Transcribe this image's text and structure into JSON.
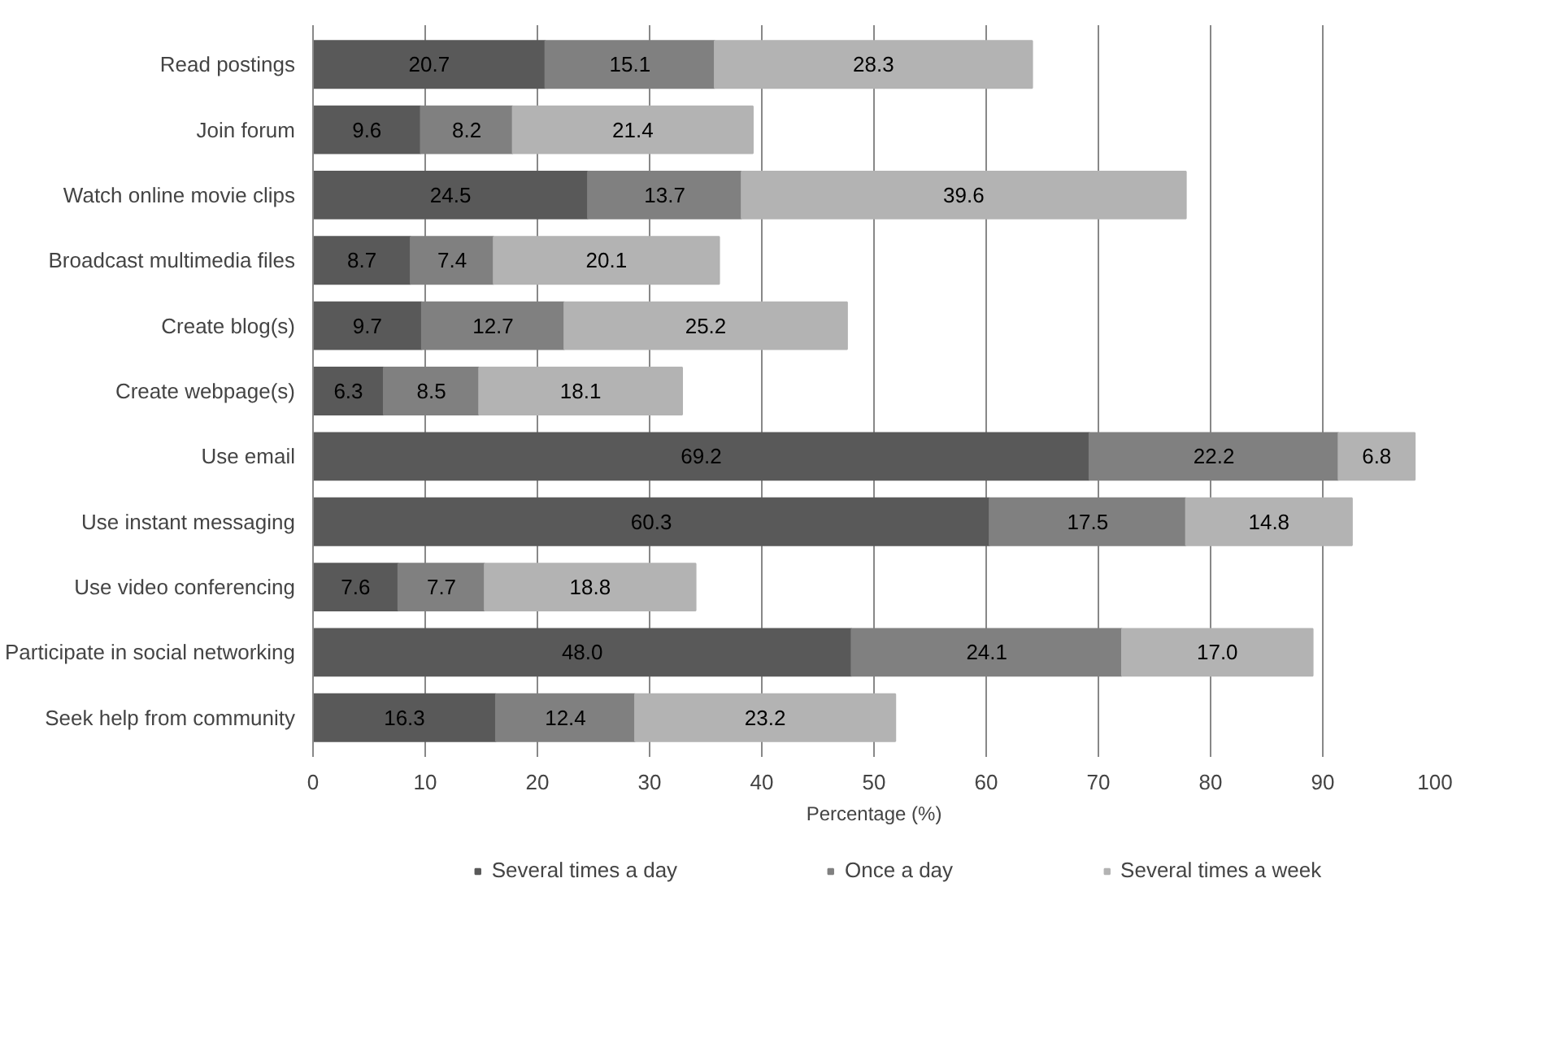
{
  "chart_data": {
    "type": "bar",
    "orientation": "horizontal",
    "stacked": true,
    "xlabel": "Percentage (%)",
    "categories": [
      "Read postings",
      "Join forum",
      "Watch online movie clips",
      "Broadcast multimedia files",
      "Create blog(s)",
      "Create webpage(s)",
      "Use email",
      "Use instant messaging",
      "Use video conferencing",
      "Participate in social networking",
      "Seek help from community"
    ],
    "series": [
      {
        "name": "Several times a day",
        "color": "#595959",
        "values": [
          20.7,
          9.6,
          24.5,
          8.7,
          9.7,
          6.3,
          69.2,
          60.3,
          7.6,
          48.0,
          16.3
        ],
        "value_labels": [
          "20.7",
          "9.6",
          "24.5",
          "8.7",
          "9.7",
          "6.3",
          "69.2",
          "60.3",
          "7.6",
          "48.0",
          "16.3"
        ]
      },
      {
        "name": "Once a day",
        "color": "#808080",
        "values": [
          15.1,
          8.2,
          13.7,
          7.4,
          12.7,
          8.5,
          22.2,
          17.5,
          7.7,
          24.1,
          12.4
        ],
        "value_labels": [
          "15.1",
          "8.2",
          "13.7",
          "7.4",
          "12.7",
          "8.5",
          "22.2",
          "17.5",
          "7.7",
          "24.1",
          "12.4"
        ]
      },
      {
        "name": "Several times a week",
        "color": "#b3b3b3",
        "values": [
          28.3,
          21.4,
          39.6,
          20.1,
          25.2,
          18.1,
          6.8,
          14.8,
          18.8,
          17.0,
          23.2
        ],
        "value_labels": [
          "28.3",
          "21.4",
          "39.6",
          "20.1",
          "25.2",
          "18.1",
          "6.8",
          "14.8",
          "18.8",
          "17.0",
          "23.2"
        ]
      }
    ],
    "xlim": [
      0,
      100
    ],
    "xticks": [
      0,
      10,
      20,
      30,
      40,
      50,
      60,
      70,
      80,
      90,
      100
    ],
    "grid": "x",
    "legend": "bottom"
  }
}
